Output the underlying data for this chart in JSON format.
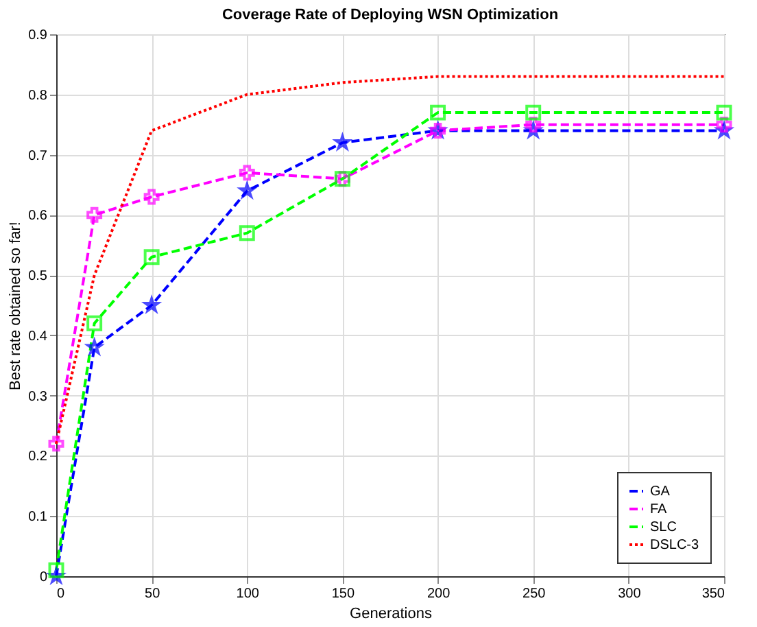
{
  "chart_data": {
    "type": "line",
    "title": "Coverage Rate of Deploying WSN Optimization",
    "xlabel": "Generations",
    "ylabel": "Best rate obtained so far!",
    "x": [
      0,
      20,
      50,
      100,
      150,
      200,
      250,
      350
    ],
    "series": [
      {
        "name": "GA",
        "color": "#0000ff",
        "marker": "star",
        "line_style": "dashed",
        "values": [
          0,
          0.38,
          0.45,
          0.64,
          0.72,
          0.74,
          0.74,
          0.74
        ]
      },
      {
        "name": "FA",
        "color": "#ff00ff",
        "marker": "cross",
        "line_style": "dashed",
        "values": [
          0.22,
          0.6,
          0.63,
          0.67,
          0.66,
          0.74,
          0.75,
          0.75
        ]
      },
      {
        "name": "SLC",
        "color": "#00ff00",
        "marker": "square",
        "line_style": "dashed",
        "values": [
          0.01,
          0.42,
          0.53,
          0.57,
          0.66,
          0.77,
          0.77,
          0.77
        ]
      },
      {
        "name": "DSLC-3",
        "color": "#ff0000",
        "marker": "none",
        "line_style": "dotted",
        "values": [
          0.22,
          0.5,
          0.74,
          0.8,
          0.82,
          0.83,
          0.83,
          0.83
        ]
      }
    ],
    "xlim": [
      0,
      350
    ],
    "xticks": [
      0,
      50,
      100,
      150,
      200,
      250,
      300,
      350
    ],
    "ylim": [
      0,
      0.9
    ],
    "yticks": [
      0,
      0.1,
      0.2,
      0.3,
      0.4,
      0.5,
      0.6,
      0.7,
      0.8,
      0.9
    ],
    "grid": true,
    "legend": "bottom right"
  }
}
